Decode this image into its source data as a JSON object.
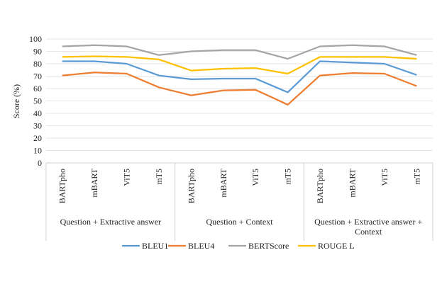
{
  "chart_data": {
    "type": "line",
    "title": "",
    "xlabel": "",
    "ylabel": "Score (%)",
    "ylim": [
      0,
      100
    ],
    "yticks": [
      0,
      10,
      20,
      30,
      40,
      50,
      60,
      70,
      80,
      90,
      100
    ],
    "grid": true,
    "legend_position": "bottom",
    "categories": [
      "BARTpho",
      "mBART",
      "ViT5",
      "mT5",
      "BARTpho",
      "mBART",
      "ViT5",
      "mT5",
      "BARTpho",
      "mBART",
      "ViT5",
      "mT5"
    ],
    "groups": [
      {
        "label": "Question + Extractive answer",
        "size": 4
      },
      {
        "label": "Question + Context",
        "size": 4
      },
      {
        "label": "Question + Extractive answer + Context",
        "size": 4
      }
    ],
    "series": [
      {
        "name": "BLEU1",
        "color": "#5B9BD5",
        "values": [
          82,
          82,
          80,
          70.5,
          67.5,
          68,
          68,
          57,
          82,
          81,
          80,
          71
        ]
      },
      {
        "name": "BLEU4",
        "color": "#ED7D31",
        "values": [
          70.5,
          73,
          72,
          61,
          54.5,
          58.5,
          59,
          47,
          70.5,
          72.5,
          72,
          62
        ]
      },
      {
        "name": "BERTScore",
        "color": "#A5A5A5",
        "values": [
          94,
          95,
          94,
          87,
          90,
          91,
          91,
          84,
          94,
          95,
          94,
          87
        ]
      },
      {
        "name": "ROUGE L",
        "color": "#FFC000",
        "values": [
          85.5,
          86,
          85.5,
          83.5,
          74.5,
          76,
          76.5,
          72,
          85.5,
          85.5,
          85.5,
          84
        ]
      }
    ]
  }
}
